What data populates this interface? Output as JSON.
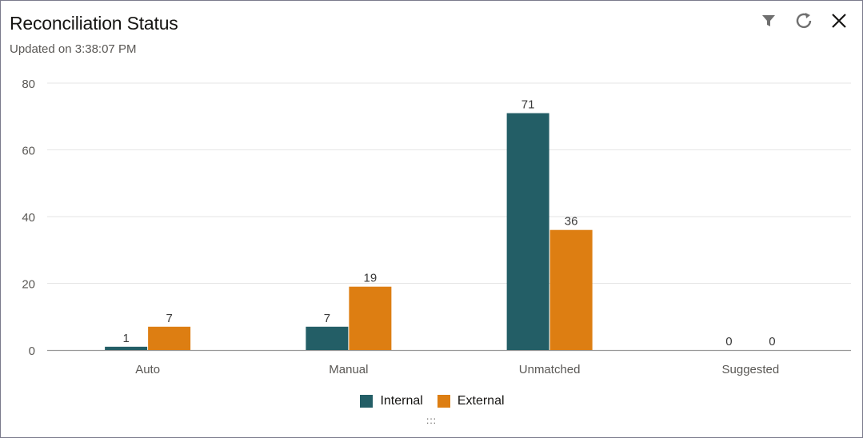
{
  "header": {
    "title": "Reconciliation Status",
    "subtitle": "Updated on 3:38:07 PM"
  },
  "toolbar": {
    "icons": [
      "filter-icon",
      "refresh-icon",
      "close-icon"
    ]
  },
  "colors": {
    "internal": "#235e66",
    "external": "#dd7e12",
    "grid": "#e6e6e6",
    "axis": "#9a9a9a"
  },
  "chart_data": {
    "type": "bar",
    "categories": [
      "Auto",
      "Manual",
      "Unmatched",
      "Suggested"
    ],
    "series": [
      {
        "name": "Internal",
        "values": [
          1,
          7,
          71,
          0
        ]
      },
      {
        "name": "External",
        "values": [
          7,
          19,
          36,
          0
        ]
      }
    ],
    "ylim": [
      0,
      80
    ],
    "yticks": [
      0,
      20,
      40,
      60,
      80
    ],
    "grid": true,
    "legend_position": "bottom",
    "data_labels": true
  },
  "resize_handle": ":::"
}
